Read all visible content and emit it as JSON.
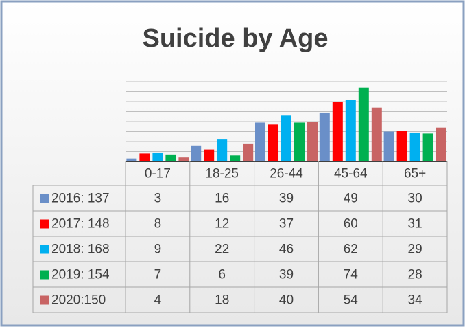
{
  "chart_data": {
    "type": "bar",
    "title": "Suicide by Age",
    "categories": [
      "0-17",
      "18-25",
      "26-44",
      "45-64",
      "65+"
    ],
    "series": [
      {
        "name": "2016: 137",
        "color": "#6a8fc8",
        "values": [
          3,
          16,
          39,
          49,
          30
        ]
      },
      {
        "name": "2017: 148",
        "color": "#ff0000",
        "values": [
          8,
          12,
          37,
          60,
          31
        ]
      },
      {
        "name": "2018: 168",
        "color": "#00b0f0",
        "values": [
          9,
          22,
          46,
          62,
          29
        ]
      },
      {
        "name": "2019: 154",
        "color": "#00b050",
        "values": [
          7,
          6,
          39,
          74,
          28
        ]
      },
      {
        "name": "2020:150",
        "color": "#c86464",
        "values": [
          4,
          18,
          40,
          54,
          34
        ]
      }
    ],
    "ylim": [
      0,
      80
    ],
    "yticks": [
      0,
      10,
      20,
      30,
      40,
      50,
      60,
      70,
      80
    ],
    "grid": true
  }
}
